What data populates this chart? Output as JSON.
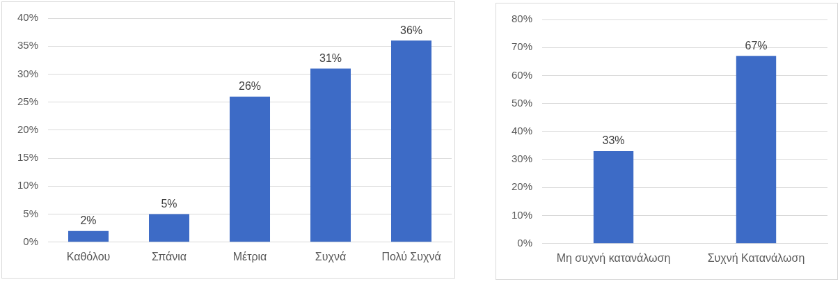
{
  "chart_data": [
    {
      "type": "bar",
      "categories": [
        "Καθόλου",
        "Σπάνια",
        "Μέτρια",
        "Συχνά",
        "Πολύ Συχνά"
      ],
      "values": [
        2,
        5,
        26,
        31,
        36
      ],
      "value_labels": [
        "2%",
        "5%",
        "26%",
        "31%",
        "36%"
      ],
      "color": "#3d6bc6",
      "ylim": [
        0,
        40
      ],
      "yticks": [
        {
          "value": 0,
          "label": "0%"
        },
        {
          "value": 5,
          "label": "5%"
        },
        {
          "value": 10,
          "label": "10%"
        },
        {
          "value": 15,
          "label": "15%"
        },
        {
          "value": 20,
          "label": "20%"
        },
        {
          "value": 25,
          "label": "25%"
        },
        {
          "value": 30,
          "label": "30%"
        },
        {
          "value": 35,
          "label": "35%"
        },
        {
          "value": 40,
          "label": "40%"
        }
      ],
      "grid": "y"
    },
    {
      "type": "bar",
      "categories": [
        "Μη συχνή κατανάλωση",
        "Συχνή Κατανάλωση"
      ],
      "values": [
        33,
        67
      ],
      "value_labels": [
        "33%",
        "67%"
      ],
      "color": "#3d6bc6",
      "ylim": [
        0,
        80
      ],
      "yticks": [
        {
          "value": 0,
          "label": "0%"
        },
        {
          "value": 10,
          "label": "10%"
        },
        {
          "value": 20,
          "label": "20%"
        },
        {
          "value": 30,
          "label": "30%"
        },
        {
          "value": 40,
          "label": "40%"
        },
        {
          "value": 50,
          "label": "50%"
        },
        {
          "value": 60,
          "label": "60%"
        },
        {
          "value": 70,
          "label": "70%"
        },
        {
          "value": 80,
          "label": "80%"
        }
      ],
      "grid": "y"
    }
  ]
}
